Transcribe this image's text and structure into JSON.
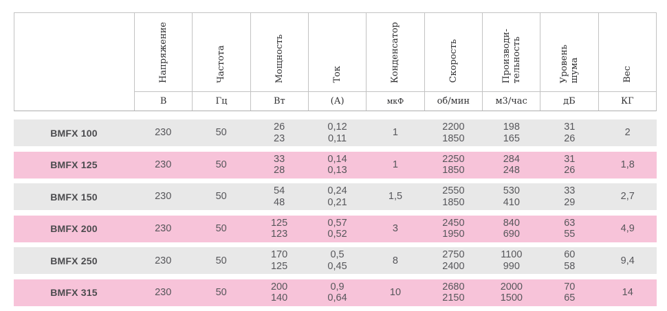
{
  "table": {
    "corner_label": "",
    "columns": [
      {
        "label_lines": [
          "Напряжение"
        ],
        "unit": "В"
      },
      {
        "label_lines": [
          "Частота"
        ],
        "unit": "Гц"
      },
      {
        "label_lines": [
          "Мощность"
        ],
        "unit": "Вт"
      },
      {
        "label_lines": [
          "Ток"
        ],
        "unit": "(А)"
      },
      {
        "label_lines": [
          "Конденсатор"
        ],
        "unit": "мкФ"
      },
      {
        "label_lines": [
          "Скорость"
        ],
        "unit": "об/мин"
      },
      {
        "label_lines": [
          "Производи-",
          "тельность"
        ],
        "unit": "м3/час"
      },
      {
        "label_lines": [
          "Уровень",
          "шума"
        ],
        "unit": "дБ"
      },
      {
        "label_lines": [
          "Вес"
        ],
        "unit": "КГ"
      }
    ],
    "rows": [
      {
        "model": "BMFX 100",
        "values": [
          [
            "230"
          ],
          [
            "50"
          ],
          [
            "26",
            "23"
          ],
          [
            "0,12",
            "0,11"
          ],
          [
            "1"
          ],
          [
            "2200",
            "1850"
          ],
          [
            "198",
            "165"
          ],
          [
            "31",
            "26"
          ],
          [
            "2"
          ]
        ]
      },
      {
        "model": "BMFX 125",
        "values": [
          [
            "230"
          ],
          [
            "50"
          ],
          [
            "33",
            "28"
          ],
          [
            "0,14",
            "0,13"
          ],
          [
            "1"
          ],
          [
            "2250",
            "1850"
          ],
          [
            "284",
            "248"
          ],
          [
            "31",
            "26"
          ],
          [
            "1,8"
          ]
        ]
      },
      {
        "model": "BMFX 150",
        "values": [
          [
            "230"
          ],
          [
            "50"
          ],
          [
            "54",
            "48"
          ],
          [
            "0,24",
            "0,21"
          ],
          [
            "1,5"
          ],
          [
            "2550",
            "1850"
          ],
          [
            "530",
            "410"
          ],
          [
            "33",
            "29"
          ],
          [
            "2,7"
          ]
        ]
      },
      {
        "model": "BMFX 200",
        "values": [
          [
            "230"
          ],
          [
            "50"
          ],
          [
            "125",
            "123"
          ],
          [
            "0,57",
            "0,52"
          ],
          [
            "3"
          ],
          [
            "2450",
            "1950"
          ],
          [
            "840",
            "690"
          ],
          [
            "63",
            "55"
          ],
          [
            "4,9"
          ]
        ]
      },
      {
        "model": "BMFX 250",
        "values": [
          [
            "230"
          ],
          [
            "50"
          ],
          [
            "170",
            "125"
          ],
          [
            "0,5",
            "0,45"
          ],
          [
            "8"
          ],
          [
            "2750",
            "2400"
          ],
          [
            "1100",
            "990"
          ],
          [
            "60",
            "58"
          ],
          [
            "9,4"
          ]
        ]
      },
      {
        "model": "BMFX 315",
        "values": [
          [
            "230"
          ],
          [
            "50"
          ],
          [
            "200",
            "140"
          ],
          [
            "0,9",
            "0,64"
          ],
          [
            "10"
          ],
          [
            "2680",
            "2150"
          ],
          [
            "2000",
            "1500"
          ],
          [
            "70",
            "65"
          ],
          [
            "14"
          ]
        ]
      }
    ]
  },
  "colors": {
    "row_gray": "#e8e8e8",
    "row_pink": "#f7c3d9",
    "border": "#c2c2c2",
    "data_text": "#56565a",
    "header_text": "#2f2f31"
  }
}
